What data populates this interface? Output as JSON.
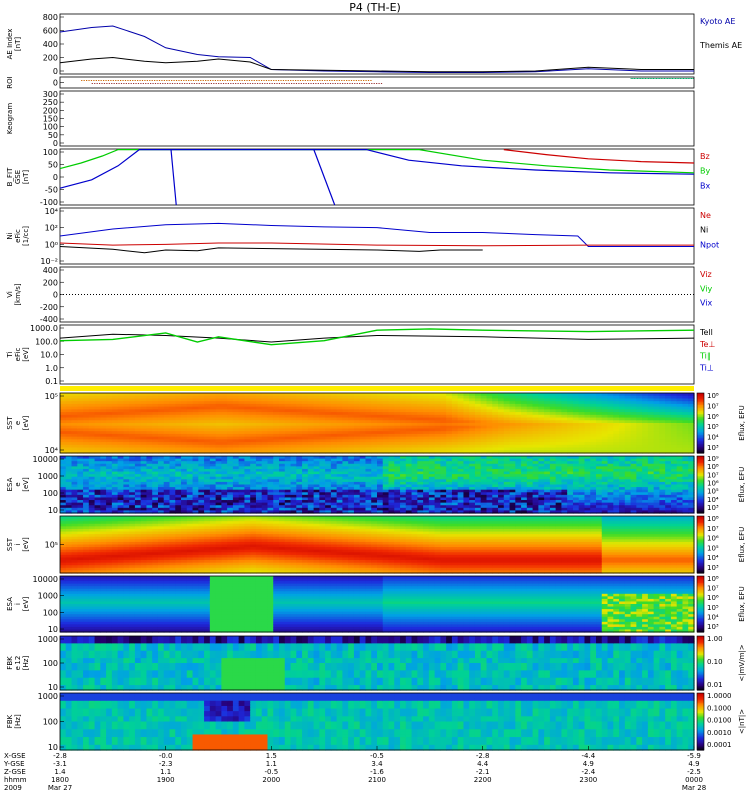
{
  "title": "P4 (TH-E)",
  "colors": {
    "kyoto": "#0000aa",
    "themis": "#000000",
    "red": "#cc0000",
    "green": "#00cc00",
    "blue": "#0000cc",
    "black": "#000000"
  },
  "panels": [
    {
      "id": "ae",
      "ylabel": [
        "AE Index",
        "[nT]"
      ],
      "ticks": [
        "800",
        "600",
        "400",
        "200",
        "0"
      ],
      "legend": [
        {
          "text": "Kyoto AE",
          "color": "#0000aa"
        },
        {
          "text": "Themis AE",
          "color": "#000000"
        }
      ]
    },
    {
      "id": "roi",
      "ylabel": [
        "ROI"
      ],
      "ticks": [
        "0"
      ],
      "legend": []
    },
    {
      "id": "keogram",
      "ylabel": [
        "Keogram"
      ],
      "ticks": [
        "300",
        "250",
        "200",
        "150",
        "100",
        "50",
        "0"
      ],
      "legend": []
    },
    {
      "id": "bfit",
      "ylabel": [
        "B_FIT",
        "GSE",
        "[nT]"
      ],
      "ticks": [
        "100",
        "50",
        "0",
        "-50",
        "-100"
      ],
      "legend": [
        {
          "text": "Bz",
          "color": "#cc0000"
        },
        {
          "text": "By",
          "color": "#00cc00"
        },
        {
          "text": "Bx",
          "color": "#0000cc"
        }
      ]
    },
    {
      "id": "ni",
      "ylabel": [
        "Ni",
        "eFic",
        "[1/cc]"
      ],
      "ticks": [
        "10⁴",
        "10²",
        "10⁰",
        "10⁻²"
      ],
      "legend": [
        {
          "text": "Ne",
          "color": "#cc0000"
        },
        {
          "text": "Ni",
          "color": "#000000"
        },
        {
          "text": "Npot",
          "color": "#0000cc"
        }
      ]
    },
    {
      "id": "vi",
      "ylabel": [
        "Vi",
        "[km/s]"
      ],
      "ticks": [
        "400",
        "200",
        "0",
        "-200",
        "-400"
      ],
      "legend": [
        {
          "text": "Viz",
          "color": "#cc0000"
        },
        {
          "text": "Viy",
          "color": "#00cc00"
        },
        {
          "text": "Vix",
          "color": "#0000cc"
        }
      ]
    },
    {
      "id": "ti",
      "ylabel": [
        "Ti",
        "eFic",
        "[eV]"
      ],
      "ticks": [
        "1000.0",
        "100.0",
        "10.0",
        "1.0",
        "0.1"
      ],
      "legend": [
        {
          "text": "Tell",
          "color": "#000000"
        },
        {
          "text": "Te⊥",
          "color": "#cc0000"
        },
        {
          "text": "Ti∥",
          "color": "#00cc00"
        },
        {
          "text": "Ti⊥",
          "color": "#0000cc"
        }
      ]
    },
    {
      "id": "sst_e",
      "ylabel": [
        "SST",
        "e",
        "[eV]"
      ],
      "ticks": [
        "10⁵",
        "10⁴"
      ],
      "legend": [],
      "cbar": {
        "label": "Eflux, EFU",
        "ticks": [
          "10⁸",
          "10⁷",
          "10⁶",
          "10⁵",
          "10⁴",
          "10³"
        ]
      }
    },
    {
      "id": "esa_e",
      "ylabel": [
        "ESA",
        "e",
        "[eV]"
      ],
      "ticks": [
        "10000",
        "1000",
        "100",
        "10"
      ],
      "legend": [],
      "cbar": {
        "label": "Eflux, EFU",
        "ticks": [
          "10⁹",
          "10⁸",
          "10⁷",
          "10⁶",
          "10⁵",
          "10⁴",
          "10³"
        ]
      }
    },
    {
      "id": "sst_i",
      "ylabel": [
        "SST",
        "i",
        "[eV]"
      ],
      "ticks": [
        "10⁵"
      ],
      "legend": [],
      "cbar": {
        "label": "Eflux, EFU",
        "ticks": [
          "10⁸",
          "10⁷",
          "10⁶",
          "10⁵",
          "10⁴",
          "10³"
        ]
      }
    },
    {
      "id": "esa_i",
      "ylabel": [
        "ESA",
        "i",
        "[eV]"
      ],
      "ticks": [
        "10000",
        "1000",
        "100",
        "10"
      ],
      "legend": [],
      "cbar": {
        "label": "Eflux, EFU",
        "ticks": [
          "10⁸",
          "10⁷",
          "10⁶",
          "10⁵",
          "10⁴",
          "10³"
        ]
      }
    },
    {
      "id": "fbk_e12",
      "ylabel": [
        "FBK",
        "e 12",
        "[Hz]"
      ],
      "ticks": [
        "1000",
        "100",
        "10"
      ],
      "legend": [],
      "cbar": {
        "label": "<|mV/m|>",
        "ticks": [
          "1.00",
          "0.10",
          "0.01"
        ]
      }
    },
    {
      "id": "fbk_b",
      "ylabel": [
        "FBK",
        "",
        "[Hz]"
      ],
      "ticks": [
        "1000",
        "100",
        "10"
      ],
      "legend": [],
      "cbar": {
        "label": "<|nT|>",
        "ticks": [
          "1.0000",
          "0.1000",
          "0.0100",
          "0.0010",
          "0.0001"
        ]
      }
    }
  ],
  "xaxis": {
    "row_labels": [
      "X-GSE",
      "Y-GSE",
      "Z-GSE",
      "hhmm",
      "2009"
    ],
    "columns": [
      {
        "x": "-2.8",
        "y": "-3.1",
        "z": "1.4",
        "hhmm": "1800",
        "date": "Mar 27"
      },
      {
        "x": "-0.0",
        "y": "-2.3",
        "z": "1.1",
        "hhmm": "1900",
        "date": ""
      },
      {
        "x": "1.5",
        "y": "1.1",
        "z": "-0.5",
        "hhmm": "2000",
        "date": ""
      },
      {
        "x": "-0.5",
        "y": "3.4",
        "z": "-1.6",
        "hhmm": "2100",
        "date": ""
      },
      {
        "x": "-2.8",
        "y": "4.4",
        "z": "-2.1",
        "hhmm": "2200",
        "date": ""
      },
      {
        "x": "-4.4",
        "y": "4.9",
        "z": "-2.4",
        "hhmm": "2300",
        "date": ""
      },
      {
        "x": "-5.9",
        "y": "4.9",
        "z": "-2.5",
        "hhmm": "0000",
        "date": "Mar 28"
      }
    ]
  },
  "chart_data": {
    "type": "line",
    "title": "P4 (TH-E)",
    "x_hours": [
      18,
      19,
      20,
      21,
      22,
      23,
      24
    ],
    "ae_index": {
      "ylim": [
        0,
        800
      ],
      "series": [
        {
          "name": "Kyoto AE",
          "x": [
            18.0,
            18.3,
            18.5,
            18.8,
            19.0,
            19.3,
            19.5,
            19.8,
            20.0,
            20.5,
            21.0,
            21.5,
            22.0,
            22.5,
            23.0,
            23.5,
            24.0
          ],
          "values": [
            560,
            620,
            640,
            500,
            350,
            260,
            230,
            220,
            60,
            40,
            30,
            20,
            20,
            30,
            70,
            40,
            40
          ]
        },
        {
          "name": "Themis AE",
          "x": [
            18.0,
            18.3,
            18.5,
            18.8,
            19.0,
            19.3,
            19.5,
            19.8,
            20.0,
            20.5,
            21.0,
            21.5,
            22.0,
            22.5,
            23.0,
            23.5,
            24.0
          ],
          "values": [
            150,
            200,
            220,
            170,
            150,
            170,
            200,
            160,
            60,
            50,
            40,
            30,
            30,
            40,
            90,
            60,
            60
          ]
        }
      ]
    },
    "b_fit": {
      "ylim": [
        -100,
        100
      ],
      "series": [
        {
          "name": "Bz",
          "x": [
            22.2,
            22.6,
            23.0,
            23.5,
            24.0
          ],
          "values": [
            98,
            80,
            65,
            55,
            50
          ]
        },
        {
          "name": "By",
          "x": [
            18.0,
            18.2,
            18.4,
            18.55,
            21.4,
            22.0,
            22.6,
            23.2,
            24.0
          ],
          "values": [
            30,
            50,
            75,
            98,
            98,
            60,
            40,
            25,
            15
          ]
        },
        {
          "name": "Bx",
          "x": [
            18.0,
            18.3,
            18.55,
            18.75,
            20.9,
            21.3,
            21.8,
            22.5,
            23.2,
            24.0
          ],
          "values": [
            -40,
            -10,
            40,
            98,
            98,
            60,
            40,
            25,
            15,
            10
          ]
        }
      ]
    },
    "ni": {
      "ylim_log10": [
        -3,
        5
      ],
      "series": [
        {
          "name": "Npot",
          "x": [
            18.0,
            18.5,
            19.0,
            19.5,
            20.0,
            20.5,
            21.0,
            21.5,
            22.0,
            22.5,
            22.9,
            23.0,
            23.5,
            24.0
          ],
          "values": [
            1.0,
            2.0,
            2.6,
            2.8,
            2.5,
            2.3,
            2.2,
            1.5,
            1.5,
            1.2,
            1.0,
            -0.5,
            -0.5,
            -0.5
          ]
        },
        {
          "name": "Ne",
          "x": [
            18.0,
            18.5,
            19.0,
            19.5,
            20.0,
            21.0,
            22.0,
            23.0,
            24.0
          ],
          "values": [
            0.0,
            -0.3,
            -0.2,
            0.0,
            0.0,
            -0.3,
            -0.4,
            -0.3,
            -0.3
          ]
        },
        {
          "name": "Ni",
          "x": [
            18.0,
            18.5,
            18.8,
            19.0,
            19.3,
            19.5,
            20.0,
            21.0,
            21.4,
            21.6,
            22.0
          ],
          "values": [
            -0.5,
            -0.9,
            -1.4,
            -1.0,
            -1.1,
            -0.7,
            -0.8,
            -1.0,
            -1.2,
            -1.0,
            -1.0
          ]
        }
      ]
    },
    "vi": {
      "ylim": [
        -400,
        400
      ],
      "series": [
        {
          "name": "Vix",
          "x": [
            18.0,
            24.0
          ],
          "values": [
            0,
            0
          ]
        }
      ]
    },
    "ti": {
      "ylim_log10": [
        -1,
        3
      ],
      "series": [
        {
          "name": "Tell",
          "x": [
            18.0,
            18.5,
            19.0,
            19.5,
            20.0,
            20.5,
            21.0,
            22.0,
            23.0,
            24.0
          ],
          "values": [
            2.5,
            2.8,
            2.7,
            2.5,
            2.2,
            2.5,
            2.7,
            2.6,
            2.4,
            2.5
          ]
        },
        {
          "name": "Ti∥",
          "x": [
            18.0,
            18.5,
            19.0,
            19.3,
            19.5,
            20.0,
            20.5,
            21.0,
            21.5,
            22.0,
            23.0,
            24.0
          ],
          "values": [
            2.3,
            2.4,
            2.9,
            2.2,
            2.6,
            2.0,
            2.3,
            3.1,
            3.2,
            3.1,
            3.0,
            3.1
          ]
        }
      ]
    },
    "spectrograms": [
      "SST e",
      "ESA e",
      "SST i",
      "ESA i",
      "FBK e12",
      "FBK b"
    ]
  }
}
